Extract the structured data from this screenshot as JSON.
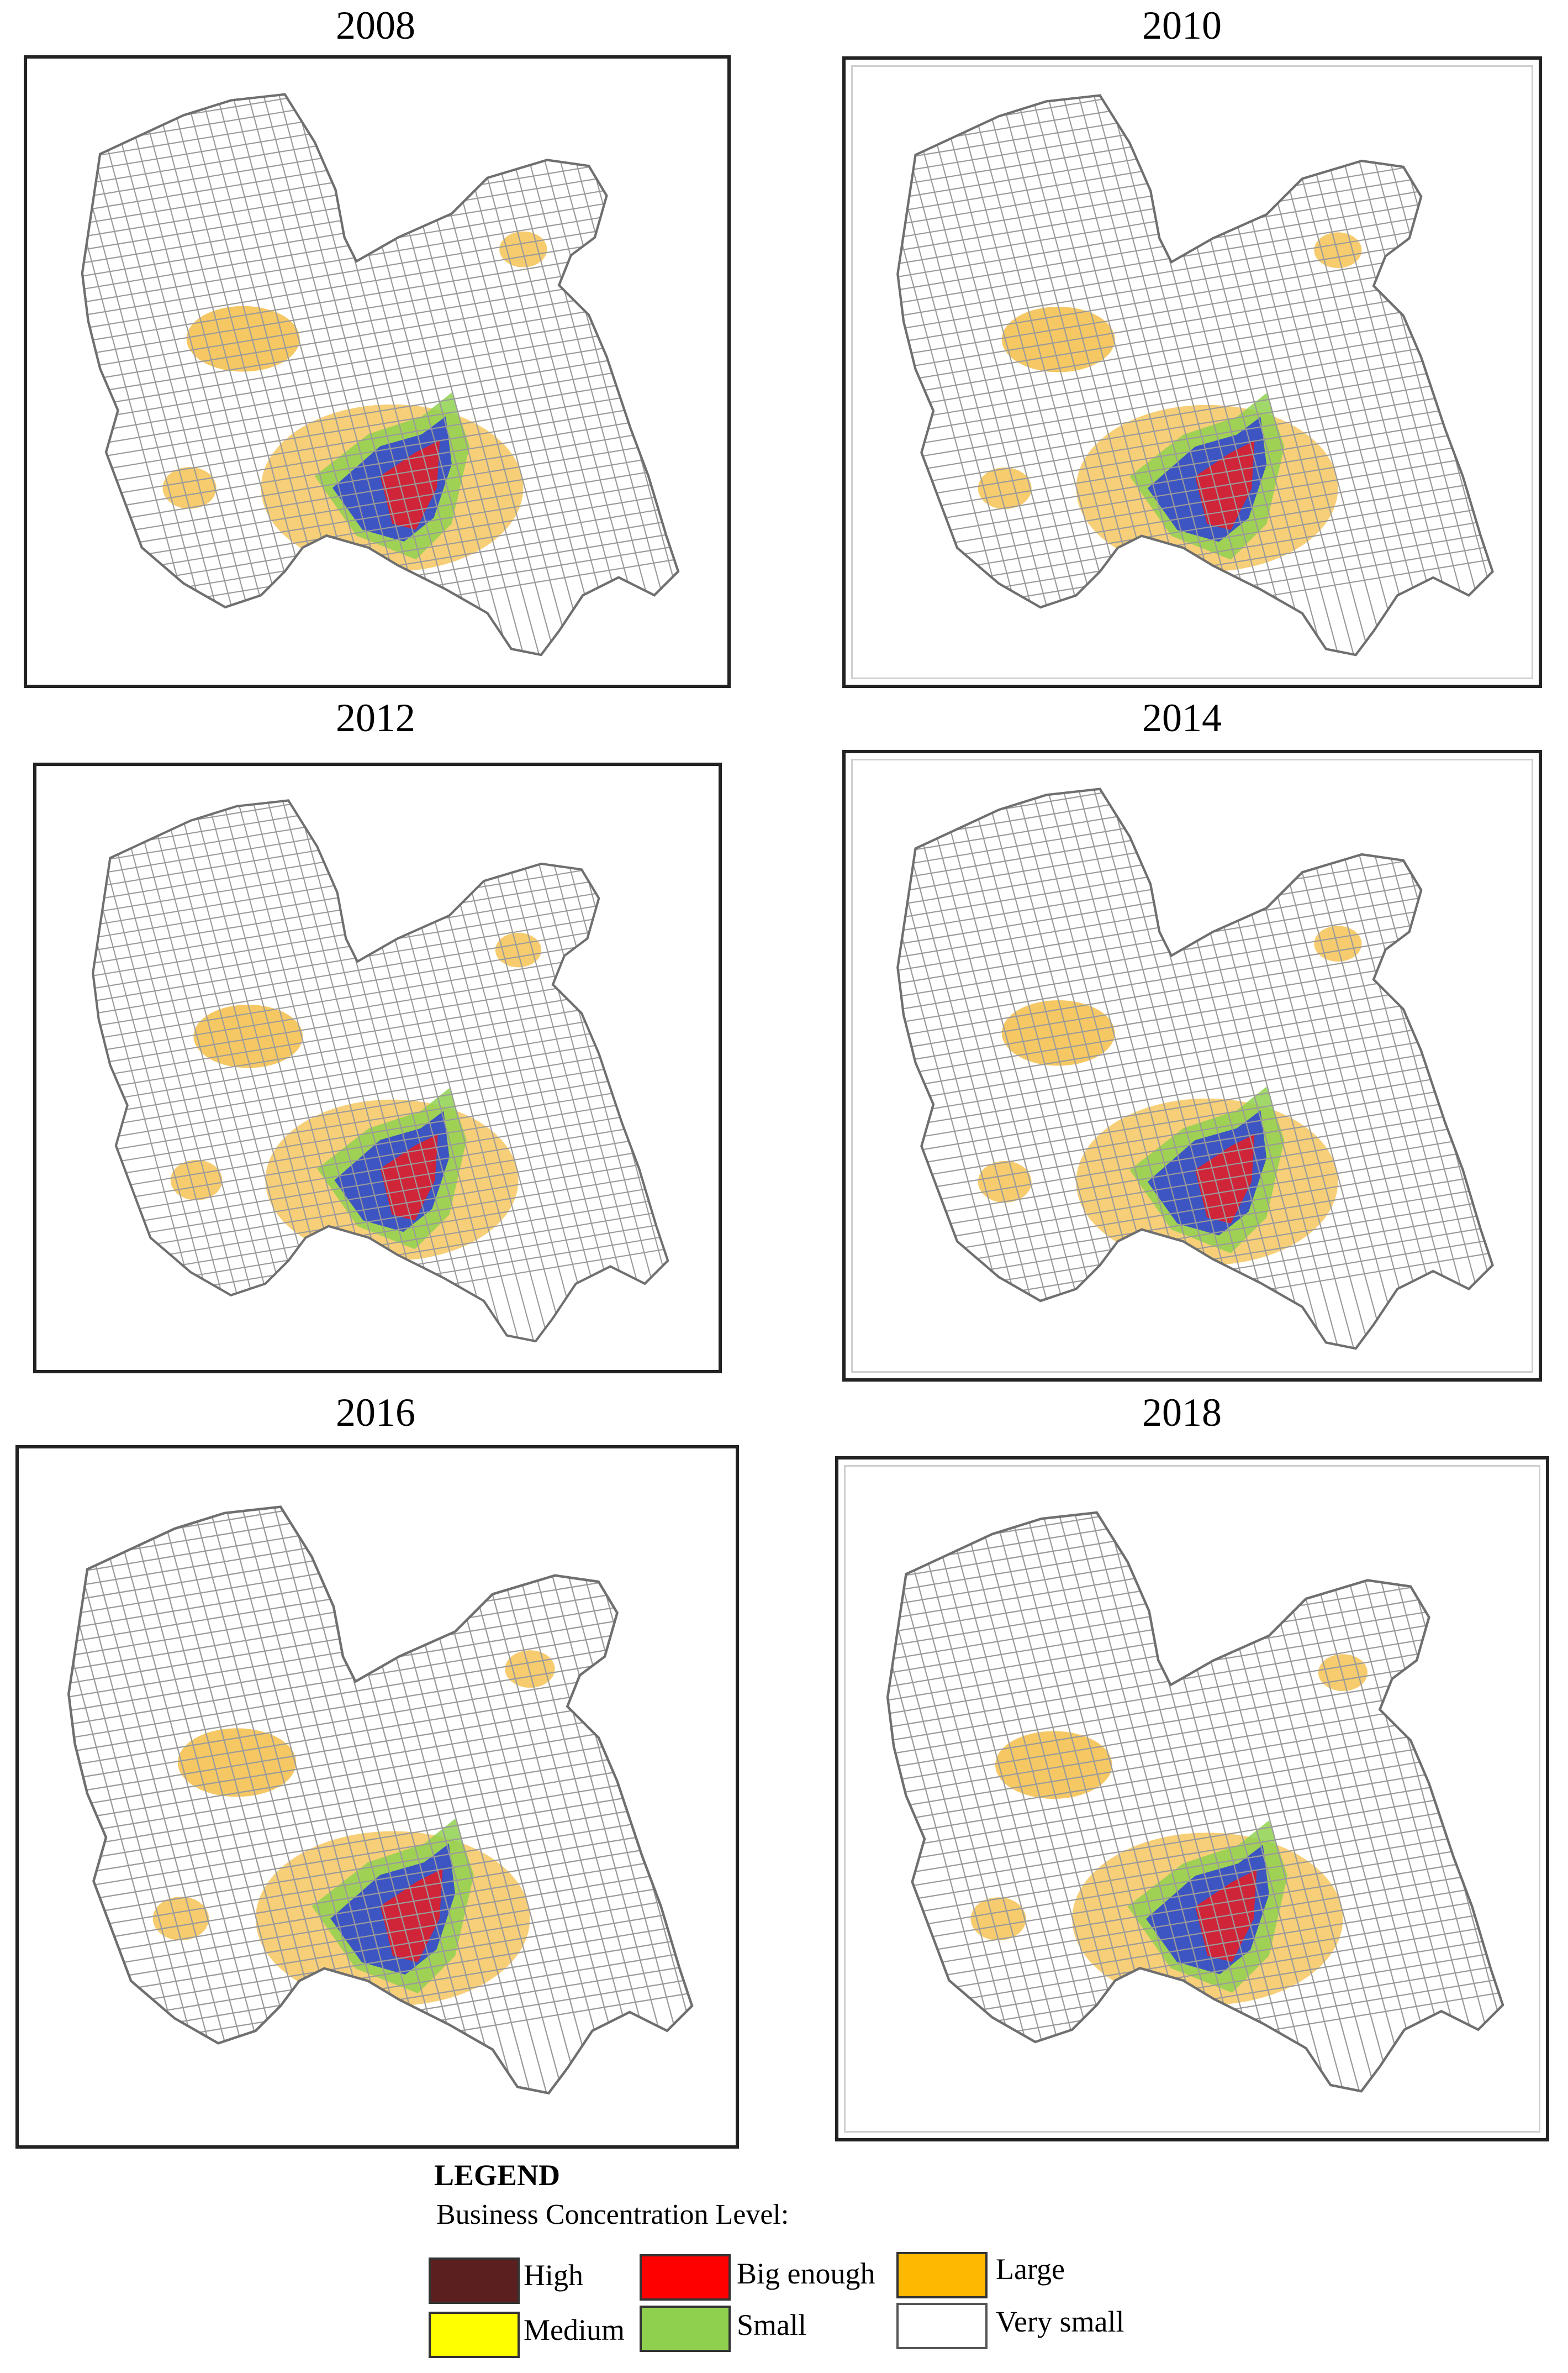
{
  "panels": [
    {
      "year": "2008"
    },
    {
      "year": "2010"
    },
    {
      "year": "2012"
    },
    {
      "year": "2014"
    },
    {
      "year": "2016"
    },
    {
      "year": "2018"
    }
  ],
  "legend": {
    "title": "LEGEND",
    "subtitle": "Business Concentration Level:",
    "items": [
      {
        "label": "High",
        "color": "#5c1f1f"
      },
      {
        "label": "Big enough",
        "color": "#ff0000"
      },
      {
        "label": "Large",
        "color": "#ffb800"
      },
      {
        "label": "Medium",
        "color": "#ffff00"
      },
      {
        "label": "Small",
        "color": "#8fd14f"
      },
      {
        "label": "Very small",
        "color": "#ffffff"
      }
    ]
  },
  "map_colors": {
    "streets": "#9a9a9a",
    "core_blue": "#2b3fd6",
    "core_red": "#e01f2a",
    "ring_green": "#8fd14f",
    "ring_orange": "#f2b630"
  }
}
